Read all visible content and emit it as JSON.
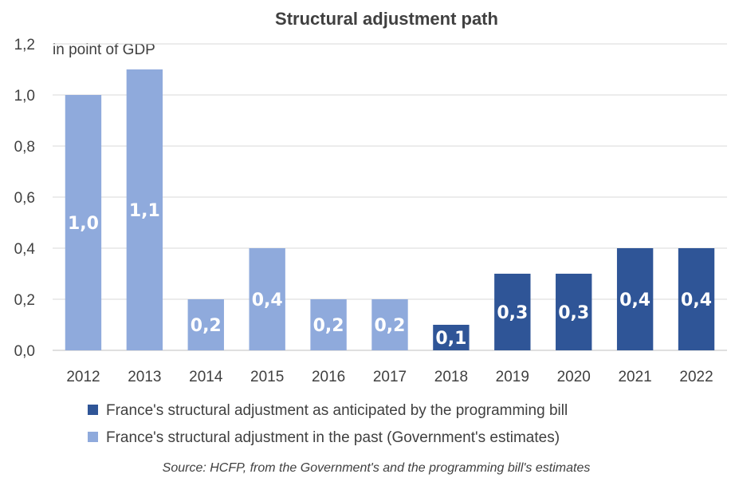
{
  "chart_data": {
    "type": "bar",
    "title": "Structural adjustment path",
    "unit_note": "in point of GDP",
    "categories": [
      "2012",
      "2013",
      "2014",
      "2015",
      "2016",
      "2017",
      "2018",
      "2019",
      "2020",
      "2021",
      "2022"
    ],
    "values": [
      1.0,
      1.1,
      0.2,
      0.4,
      0.2,
      0.2,
      0.1,
      0.3,
      0.3,
      0.4,
      0.4
    ],
    "data_labels": [
      "1,0",
      "1,1",
      "0,2",
      "0,4",
      "0,2",
      "0,2",
      "0,1",
      "0,3",
      "0,3",
      "0,4",
      "0,4"
    ],
    "series_index": [
      1,
      1,
      1,
      1,
      1,
      1,
      0,
      0,
      0,
      0,
      0
    ],
    "series": [
      {
        "name": "France's structural adjustment as anticipated by the programming bill",
        "color": "#2F5597"
      },
      {
        "name": "France's structural adjustment in the past (Government's estimates)",
        "color": "#8FAADC"
      }
    ],
    "ylim": [
      0,
      1.2
    ],
    "yticks": [
      0,
      0.2,
      0.4,
      0.6,
      0.8,
      1.0,
      1.2
    ],
    "ytick_labels": [
      "0,0",
      "0,2",
      "0,4",
      "0,6",
      "0,8",
      "1,0",
      "1,2"
    ],
    "grid": true,
    "legend_position": "bottom",
    "source": "Source: HCFP, from the Government's and the programming bill's estimates"
  }
}
